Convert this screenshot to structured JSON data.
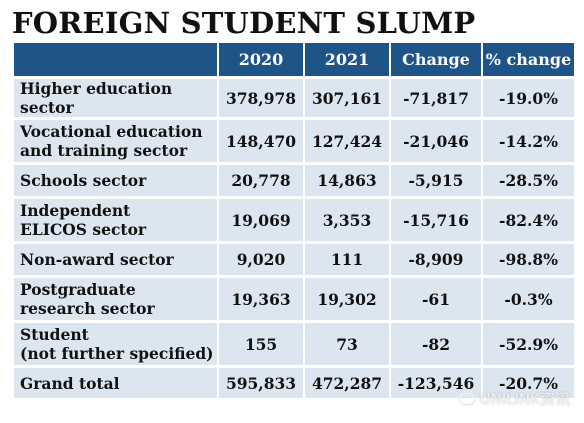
{
  "chart_data": {
    "type": "table",
    "title": "FOREIGN STUDENT SLUMP",
    "columns": [
      "",
      "2020",
      "2021",
      "Change",
      "% change"
    ],
    "rows": [
      {
        "label_lines": [
          "Higher education sector"
        ],
        "values": [
          "378,978",
          "307,161",
          "-71,817",
          "-19.0%"
        ]
      },
      {
        "label_lines": [
          "Vocational education",
          "and training sector"
        ],
        "values": [
          "148,470",
          "127,424",
          "-21,046",
          "-14.2%"
        ]
      },
      {
        "label_lines": [
          "Schools sector"
        ],
        "values": [
          "20,778",
          "14,863",
          "-5,915",
          "-28.5%"
        ]
      },
      {
        "label_lines": [
          "Independent",
          "ELICOS sector"
        ],
        "values": [
          "19,069",
          "3,353",
          "-15,716",
          "-82.4%"
        ]
      },
      {
        "label_lines": [
          "Non-award sector"
        ],
        "values": [
          "9,020",
          "111",
          "-8,909",
          "-98.8%"
        ]
      },
      {
        "label_lines": [
          "Postgraduate",
          "research sector"
        ],
        "values": [
          "19,363",
          "19,302",
          "-61",
          "-0.3%"
        ]
      },
      {
        "label_lines": [
          "Student",
          "(not further specified)"
        ],
        "values": [
          "155",
          "73",
          "-82",
          "-52.9%"
        ]
      },
      {
        "label_lines": [
          "Grand total"
        ],
        "values": [
          "595,833",
          "472,287",
          "-123,546",
          "-20.7%"
        ]
      }
    ],
    "colors": {
      "header_bg": "#1f5488",
      "row_bg": "#dce6f0"
    }
  },
  "watermark": {
    "text": "UNILINK资讯",
    "icon": "wechat-icon"
  }
}
